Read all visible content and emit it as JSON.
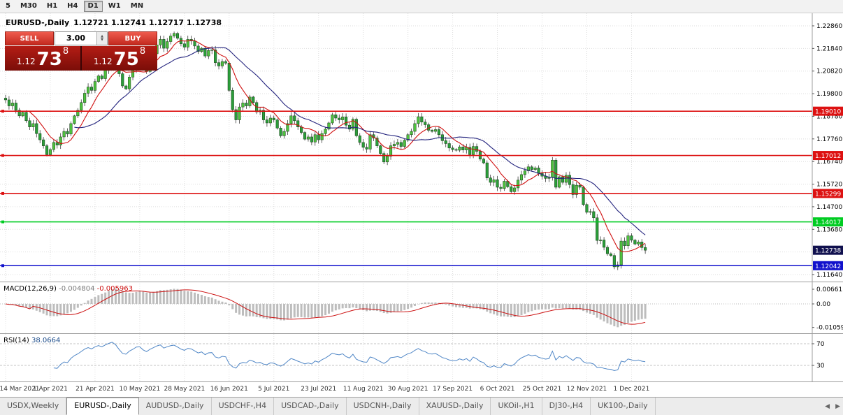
{
  "toolbar": {
    "timeframes": [
      "5",
      "M30",
      "H1",
      "H4",
      "D1",
      "W1",
      "MN"
    ],
    "active_timeframe": "D1"
  },
  "chart_header": {
    "title": "EURUSD-,Daily",
    "ohlc": "1.12721 1.12741 1.12717 1.12738"
  },
  "trade_panel": {
    "sell_label": "SELL",
    "buy_label": "BUY",
    "volume": "3.00",
    "sell_price": {
      "prefix": "1.12",
      "big": "73",
      "sup": "8"
    },
    "buy_price": {
      "prefix": "1.12",
      "big": "75",
      "sup": "8"
    }
  },
  "icons": {
    "spinner_up": "▲",
    "spinner_down": "▼",
    "tab_scroll_left": "◀",
    "tab_scroll_right": "▶"
  },
  "chart_data": {
    "type": "candlestick",
    "symbol": "EURUSD-",
    "timeframe": "Daily",
    "note": "closes estimated from chart; OHLC wicks approximated by renderer",
    "x_labels": [
      "14 Mar 2021",
      "1 Apr 2021",
      "21 Apr 2021",
      "10 May 2021",
      "28 May 2021",
      "16 Jun 2021",
      "5 Jul 2021",
      "23 Jul 2021",
      "11 Aug 2021",
      "30 Aug 2021",
      "17 Sep 2021",
      "6 Oct 2021",
      "25 Oct 2021",
      "12 Nov 2021",
      "1 Dec 2021"
    ],
    "bars_per_label": 13,
    "first_open": 1.196,
    "closes": [
      1.1952,
      1.1925,
      1.1938,
      1.1905,
      1.188,
      1.1896,
      1.1858,
      1.183,
      1.1845,
      1.18,
      1.1772,
      1.1745,
      1.1705,
      1.1728,
      1.176,
      1.1748,
      1.1785,
      1.181,
      1.1798,
      1.1845,
      1.188,
      1.1905,
      1.194,
      1.1982,
      1.201,
      1.1995,
      1.2035,
      1.206,
      1.2048,
      1.2085,
      1.212,
      1.215,
      1.2125,
      1.207,
      1.2015,
      1.2002,
      1.2055,
      1.209,
      1.214,
      1.2145,
      1.2105,
      1.208,
      1.2125,
      1.216,
      1.22,
      1.2225,
      1.2185,
      1.2215,
      1.224,
      1.2252,
      1.223,
      1.2205,
      1.219,
      1.2225,
      1.2218,
      1.2195,
      1.217,
      1.2185,
      1.215,
      1.2175,
      1.2178,
      1.212,
      1.2105,
      1.2125,
      1.2118,
      1.1995,
      1.1908,
      1.1862,
      1.192,
      1.1938,
      1.1925,
      1.1965,
      1.194,
      1.1898,
      1.1905,
      1.1862,
      1.1848,
      1.187,
      1.1862,
      1.1825,
      1.179,
      1.181,
      1.1845,
      1.188,
      1.1858,
      1.183,
      1.1805,
      1.1775,
      1.1785,
      1.1762,
      1.1795,
      1.1772,
      1.18,
      1.182,
      1.1848,
      1.1885,
      1.187,
      1.1862,
      1.1875,
      1.1838,
      1.182,
      1.1865,
      1.179,
      1.176,
      1.1738,
      1.173,
      1.1795,
      1.178,
      1.1745,
      1.171,
      1.1672,
      1.1698,
      1.1745,
      1.1752,
      1.176,
      1.1742,
      1.177,
      1.1795,
      1.181,
      1.1845,
      1.1876,
      1.1852,
      1.184,
      1.1815,
      1.181,
      1.1818,
      1.1795,
      1.1768,
      1.1755,
      1.1735,
      1.1728,
      1.1725,
      1.174,
      1.1726,
      1.1738,
      1.1705,
      1.1742,
      1.172,
      1.1685,
      1.1668,
      1.16,
      1.158,
      1.1592,
      1.1558,
      1.1552,
      1.1585,
      1.156,
      1.1538,
      1.1555,
      1.159,
      1.1615,
      1.1632,
      1.165,
      1.1638,
      1.1645,
      1.162,
      1.1608,
      1.1598,
      1.1602,
      1.168,
      1.1558,
      1.1605,
      1.158,
      1.1612,
      1.157,
      1.1525,
      1.1567,
      1.1558,
      1.148,
      1.1445,
      1.1448,
      1.142,
      1.1318,
      1.132,
      1.1287,
      1.1258,
      1.125,
      1.1199,
      1.1208,
      1.1315,
      1.1294,
      1.1339,
      1.1319,
      1.1302,
      1.1311,
      1.1286,
      1.12738
    ],
    "current_price_label": "1.12738",
    "y_axis_labels": [
      "1.22860",
      "1.21840",
      "1.20820",
      "1.19800",
      "1.18780",
      "1.17760",
      "1.16740",
      "1.15720",
      "1.14700",
      "1.13680",
      "1.11640"
    ],
    "levels": [
      {
        "label": "1.19010",
        "color": "#dd1111"
      },
      {
        "label": "1.17012",
        "color": "#dd1111"
      },
      {
        "label": "1.15299",
        "color": "#dd1111"
      },
      {
        "label": "1.14017",
        "color": "#00cc22"
      },
      {
        "label": "1.12042",
        "color": "#1111cc"
      }
    ],
    "moving_averages": [
      {
        "period": 8,
        "color": "#d01010"
      },
      {
        "period": 21,
        "color": "#24247e"
      }
    ],
    "macd": {
      "name": "MACD(12,26,9)",
      "value_main": "-0.004804",
      "value_signal": "-0.005963",
      "axis_labels": [
        "0.006611",
        "0.00",
        "-0.010595"
      ],
      "fast": 12,
      "slow": 26,
      "signal": 9
    },
    "rsi": {
      "name": "RSI(14)",
      "value": "38.0664",
      "axis_labels": [
        "70",
        "30"
      ],
      "period": 14
    }
  },
  "tabs": {
    "items": [
      "USDX,Weekly",
      "EURUSD-,Daily",
      "AUDUSD-,Daily",
      "USDCHF-,H4",
      "USDCAD-,Daily",
      "USDCNH-,Daily",
      "XAUUSD-,Daily",
      "UKOil-,H1",
      "DJ30-,H4",
      "UK100-,Daily"
    ],
    "active": "EURUSD-,Daily"
  },
  "colors": {
    "candle_up": "#4ec13e",
    "candle_down": "#2b9e3a",
    "candle_border": "#143814",
    "wick": "#1e1e1e",
    "macd_hist": "#bdbdbd",
    "macd_signal": "#cc1111",
    "rsi_line": "#4f86c6",
    "rsi_value_text": "#1f4e8c",
    "grid": "#dedede",
    "separator": "#9d9d9d",
    "current_price_box": "#10104e"
  }
}
